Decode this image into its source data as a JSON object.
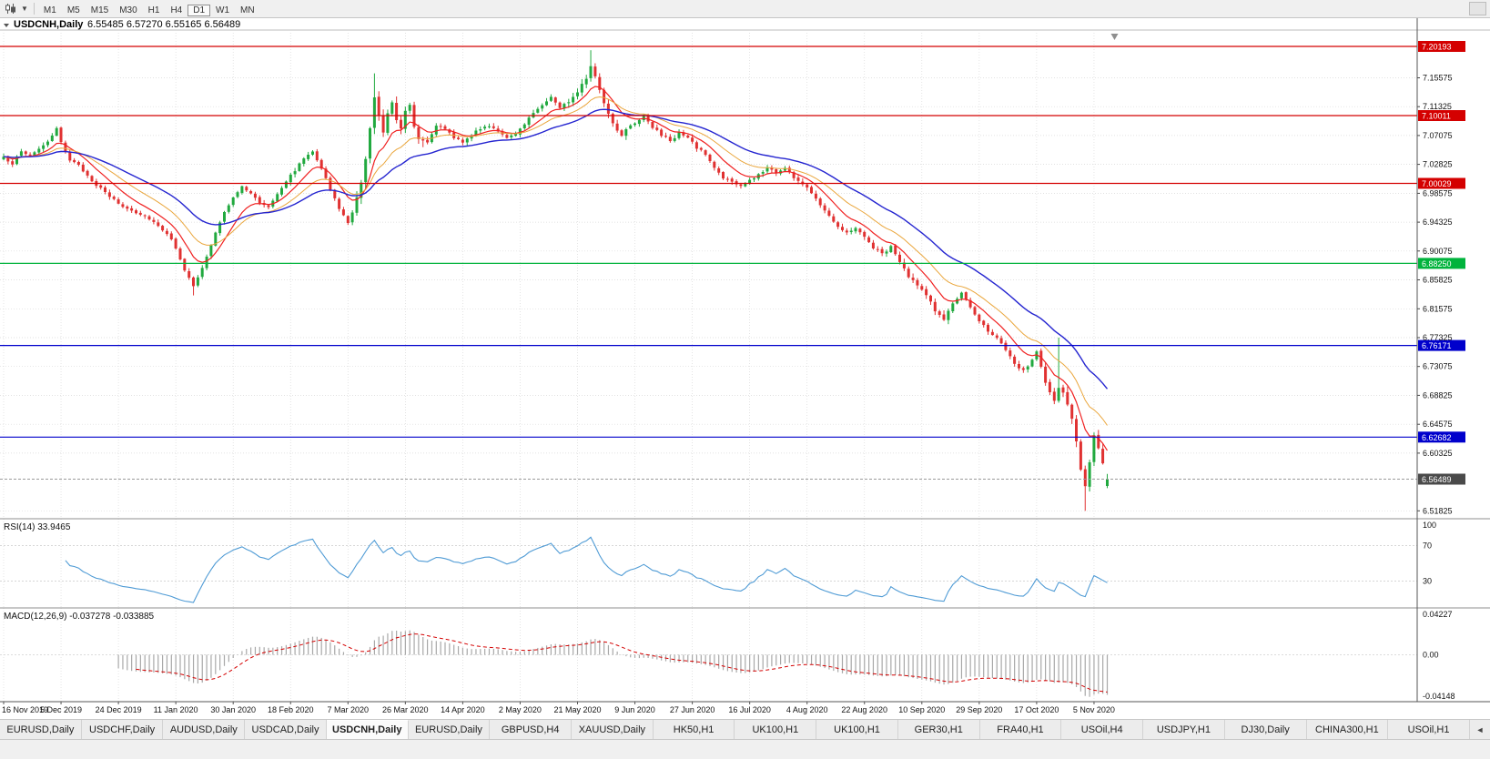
{
  "toolbar": {
    "timeframes": [
      "M1",
      "M5",
      "M15",
      "M30",
      "H1",
      "H4",
      "D1",
      "W1",
      "MN"
    ],
    "active_timeframe": "D1"
  },
  "chart": {
    "title": "USDCNH,Daily",
    "open": "6.55485",
    "high": "6.57270",
    "low": "6.55165",
    "close": "6.56489"
  },
  "price_axis": {
    "ticks": [
      "7.15575",
      "7.11325",
      "7.07075",
      "7.02825",
      "6.98575",
      "6.94325",
      "6.90075",
      "6.85825",
      "6.81575",
      "6.77325",
      "6.73075",
      "6.68825",
      "6.64575",
      "6.60325",
      "6.51825"
    ]
  },
  "hlines": [
    {
      "label": "7.20193",
      "value": 7.20193,
      "color": "#d40000"
    },
    {
      "label": "7.10011",
      "value": 7.10011,
      "color": "#d40000"
    },
    {
      "label": "7.00029",
      "value": 7.00029,
      "color": "#d40000"
    },
    {
      "label": "6.88250",
      "value": 6.8825,
      "color": "#00b33c"
    },
    {
      "label": "6.76171",
      "value": 6.76171,
      "color": "#0000cc"
    },
    {
      "label": "6.62682",
      "value": 6.62682,
      "color": "#0000cc"
    }
  ],
  "current_price": {
    "label": "6.56489",
    "value": 6.56489,
    "badge_color": "#4a4a4a",
    "line_color": "#9a9a9a"
  },
  "x_axis": {
    "bars_per_label": 13,
    "labels": [
      "16 Nov 2019",
      "5 Dec 2019",
      "24 Dec 2019",
      "11 Jan 2020",
      "30 Jan 2020",
      "18 Feb 2020",
      "7 Mar 2020",
      "26 Mar 2020",
      "14 Apr 2020",
      "2 May 2020",
      "21 May 2020",
      "9 Jun 2020",
      "27 Jun 2020",
      "16 Jul 2020",
      "4 Aug 2020",
      "22 Aug 2020",
      "10 Sep 2020",
      "29 Sep 2020",
      "17 Oct 2020",
      "5 Nov 2020"
    ]
  },
  "rsi": {
    "label": "RSI(14)",
    "value_label": "33.9465",
    "period": 14,
    "axis_labels": [
      "100",
      "70",
      "30"
    ],
    "levels": [
      70,
      30
    ],
    "line_color": "#4f9bd5"
  },
  "macd": {
    "label": "MACD(12,26,9)",
    "main_value": "-0.037278",
    "signal_value": "-0.033885",
    "fast": 12,
    "slow": 26,
    "signal": 9,
    "axis_labels": [
      "0.04227",
      "0.00",
      "-0.04148"
    ],
    "hist_color": "#a8a8a8",
    "signal_color": "#d40000"
  },
  "tabs": {
    "items": [
      "EURUSD,Daily",
      "USDCHF,Daily",
      "AUDUSD,Daily",
      "USDCAD,Daily",
      "USDCNH,Daily",
      "EURUSD,Daily",
      "GBPUSD,H4",
      "XAUUSD,Daily",
      "HK50,H1",
      "UK100,H1",
      "UK100,H1",
      "GER30,H1",
      "FRA40,H1",
      "USOil,H4",
      "USDJPY,H1",
      "DJ30,Daily",
      "CHINA300,H1",
      "USOil,H1"
    ],
    "active_index": 4,
    "nav_arrow": "◄"
  },
  "chart_data": {
    "type": "candlestick",
    "symbol": "USDCNH",
    "timeframe": "Daily",
    "bars": 251,
    "last_bar": {
      "open": 6.55485,
      "high": 6.5727,
      "low": 6.55165,
      "close": 6.56489
    },
    "price_range": {
      "min": 6.508,
      "max": 7.222
    },
    "colors": {
      "up": "#21a93f",
      "down": "#e03131"
    },
    "moving_averages": [
      {
        "period": 9,
        "color": "#f02020",
        "width": 1.2
      },
      {
        "period": 18,
        "color": "#eaa63c",
        "width": 1.0
      },
      {
        "period": 34,
        "color": "#2525d0",
        "width": 1.4
      }
    ],
    "anchors": [
      [
        0,
        7.038
      ],
      [
        2,
        7.03
      ],
      [
        4,
        7.047
      ],
      [
        6,
        7.041
      ],
      [
        8,
        7.052
      ],
      [
        10,
        7.06
      ],
      [
        12,
        7.08
      ],
      [
        13,
        7.062
      ],
      [
        15,
        7.035
      ],
      [
        17,
        7.026
      ],
      [
        19,
        7.012
      ],
      [
        21,
        6.998
      ],
      [
        24,
        6.981
      ],
      [
        27,
        6.966
      ],
      [
        30,
        6.958
      ],
      [
        33,
        6.949
      ],
      [
        35,
        6.938
      ],
      [
        37,
        6.927
      ],
      [
        39,
        6.906
      ],
      [
        41,
        6.873
      ],
      [
        43,
        6.848
      ],
      [
        44,
        6.861
      ],
      [
        46,
        6.892
      ],
      [
        48,
        6.927
      ],
      [
        50,
        6.957
      ],
      [
        52,
        6.981
      ],
      [
        54,
        6.995
      ],
      [
        56,
        6.985
      ],
      [
        58,
        6.972
      ],
      [
        60,
        6.966
      ],
      [
        62,
        6.986
      ],
      [
        64,
        7.004
      ],
      [
        66,
        7.02
      ],
      [
        68,
        7.037
      ],
      [
        70,
        7.049
      ],
      [
        72,
        7.023
      ],
      [
        74,
        6.991
      ],
      [
        76,
        6.963
      ],
      [
        78,
        6.943
      ],
      [
        79,
        6.956
      ],
      [
        81,
        7.0
      ],
      [
        83,
        7.08
      ],
      [
        84,
        7.126
      ],
      [
        85,
        7.098
      ],
      [
        86,
        7.076
      ],
      [
        87,
        7.107
      ],
      [
        88,
        7.121
      ],
      [
        89,
        7.096
      ],
      [
        90,
        7.081
      ],
      [
        91,
        7.109
      ],
      [
        92,
        7.117
      ],
      [
        93,
        7.086
      ],
      [
        94,
        7.069
      ],
      [
        96,
        7.061
      ],
      [
        98,
        7.087
      ],
      [
        100,
        7.079
      ],
      [
        102,
        7.068
      ],
      [
        104,
        7.062
      ],
      [
        106,
        7.071
      ],
      [
        108,
        7.081
      ],
      [
        110,
        7.086
      ],
      [
        112,
        7.078
      ],
      [
        114,
        7.066
      ],
      [
        116,
        7.072
      ],
      [
        118,
        7.089
      ],
      [
        120,
        7.104
      ],
      [
        122,
        7.117
      ],
      [
        124,
        7.127
      ],
      [
        126,
        7.112
      ],
      [
        128,
        7.121
      ],
      [
        130,
        7.137
      ],
      [
        132,
        7.157
      ],
      [
        133,
        7.171
      ],
      [
        134,
        7.156
      ],
      [
        135,
        7.139
      ],
      [
        136,
        7.119
      ],
      [
        137,
        7.103
      ],
      [
        138,
        7.089
      ],
      [
        139,
        7.079
      ],
      [
        140,
        7.073
      ],
      [
        142,
        7.087
      ],
      [
        144,
        7.094
      ],
      [
        145,
        7.101
      ],
      [
        147,
        7.083
      ],
      [
        149,
        7.071
      ],
      [
        151,
        7.063
      ],
      [
        153,
        7.074
      ],
      [
        155,
        7.067
      ],
      [
        157,
        7.053
      ],
      [
        159,
        7.043
      ],
      [
        161,
        7.023
      ],
      [
        163,
        7.009
      ],
      [
        165,
        7.002
      ],
      [
        167,
        6.996
      ],
      [
        169,
        7.004
      ],
      [
        171,
        7.013
      ],
      [
        173,
        7.024
      ],
      [
        175,
        7.017
      ],
      [
        177,
        7.023
      ],
      [
        179,
        7.009
      ],
      [
        181,
        6.999
      ],
      [
        183,
        6.987
      ],
      [
        185,
        6.97
      ],
      [
        187,
        6.953
      ],
      [
        189,
        6.938
      ],
      [
        191,
        6.927
      ],
      [
        193,
        6.936
      ],
      [
        195,
        6.921
      ],
      [
        197,
        6.906
      ],
      [
        199,
        6.897
      ],
      [
        201,
        6.907
      ],
      [
        203,
        6.884
      ],
      [
        205,
        6.863
      ],
      [
        207,
        6.849
      ],
      [
        209,
        6.838
      ],
      [
        211,
        6.813
      ],
      [
        213,
        6.799
      ],
      [
        215,
        6.824
      ],
      [
        217,
        6.838
      ],
      [
        219,
        6.816
      ],
      [
        221,
        6.799
      ],
      [
        223,
        6.784
      ],
      [
        225,
        6.773
      ],
      [
        227,
        6.754
      ],
      [
        229,
        6.734
      ],
      [
        231,
        6.724
      ],
      [
        233,
        6.74
      ],
      [
        234,
        6.752
      ],
      [
        235,
        6.731
      ],
      [
        236,
        6.706
      ],
      [
        237,
        6.692
      ],
      [
        238,
        6.679
      ],
      [
        239,
        6.699
      ],
      [
        240,
        6.691
      ],
      [
        241,
        6.672
      ],
      [
        242,
        6.656
      ],
      [
        243,
        6.622
      ],
      [
        244,
        6.581
      ],
      [
        245,
        6.553
      ],
      [
        246,
        6.592
      ],
      [
        247,
        6.629
      ],
      [
        248,
        6.613
      ],
      [
        249,
        6.585
      ],
      [
        250,
        6.56489
      ]
    ],
    "volatility_zones": [
      [
        0,
        60,
        0.9
      ],
      [
        80,
        95,
        2.0
      ],
      [
        128,
        141,
        1.4
      ],
      [
        204,
        214,
        1.3
      ],
      [
        236,
        251,
        1.7
      ]
    ],
    "wick_extremes": [
      {
        "bar": 43,
        "type": "low",
        "price": 6.8354
      },
      {
        "bar": 84,
        "type": "high",
        "price": 7.1622
      },
      {
        "bar": 133,
        "type": "high",
        "price": 7.1963
      },
      {
        "bar": 239,
        "type": "high",
        "price": 6.7732
      },
      {
        "bar": 245,
        "type": "low",
        "price": 6.5183
      }
    ]
  }
}
